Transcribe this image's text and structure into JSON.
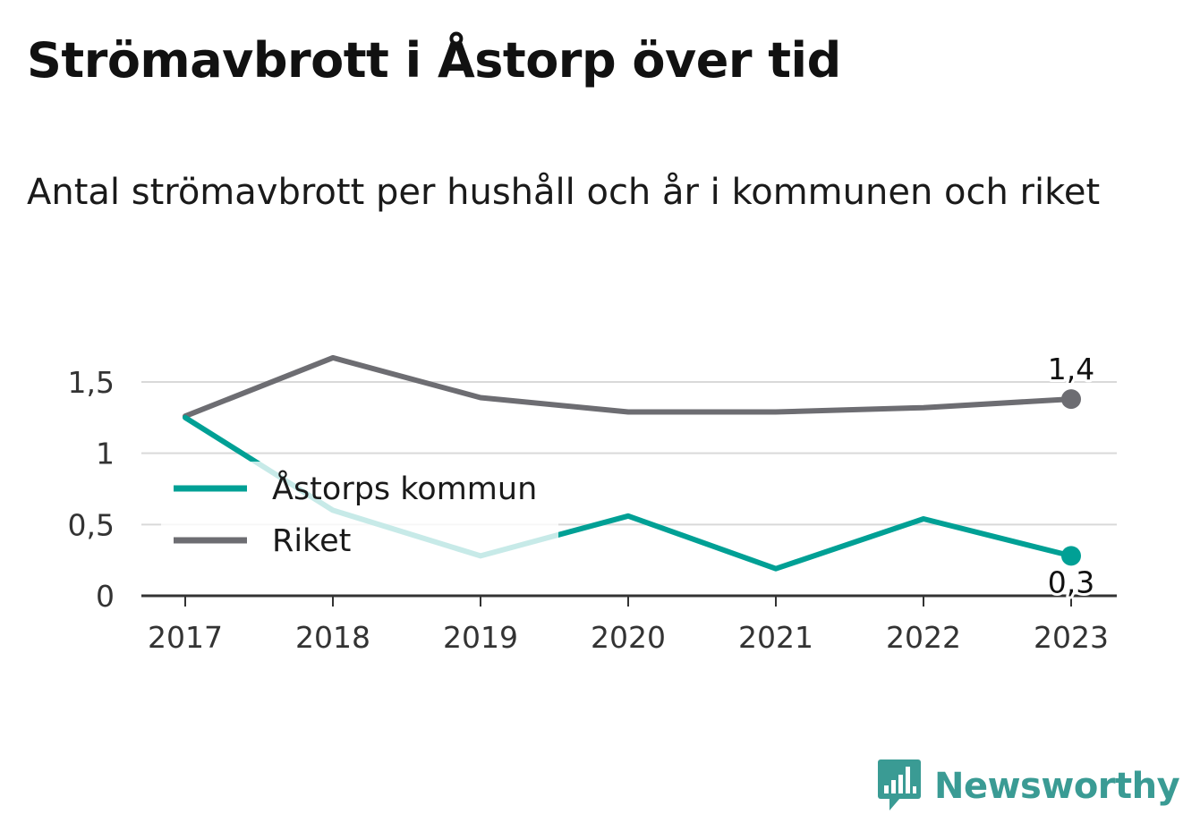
{
  "header": {
    "title": "Strömavbrott i Åstorp över tid",
    "subtitle": "Antal strömavbrott per hushåll och år i kommunen och riket"
  },
  "brand": {
    "name": "Newsworthy",
    "color": "#3a9b94",
    "icon": "bar-chart-speech-bubble-icon"
  },
  "chart_data": {
    "type": "line",
    "title": "Strömavbrott i Åstorp över tid",
    "subtitle": "Antal strömavbrott per hushåll och år i kommunen och riket",
    "xlabel": "",
    "ylabel": "",
    "x": [
      "2017",
      "2018",
      "2019",
      "2020",
      "2021",
      "2022",
      "2023"
    ],
    "ylim": [
      0,
      1.5
    ],
    "yticks": [
      0,
      0.5,
      1,
      1.5
    ],
    "ytick_labels": [
      "0",
      "0,5",
      "1",
      "1,5"
    ],
    "grid": true,
    "legend_position": "left",
    "series": [
      {
        "name": "Åstorps kommun",
        "color": "#00a095",
        "values": [
          1.25,
          0.6,
          0.28,
          0.56,
          0.19,
          0.54,
          0.28
        ],
        "end_label": "0,3",
        "end_label_position": "below"
      },
      {
        "name": "Riket",
        "color": "#6d6d72",
        "values": [
          1.26,
          1.67,
          1.39,
          1.29,
          1.29,
          1.32,
          1.38
        ],
        "end_label": "1,4",
        "end_label_position": "above"
      }
    ]
  }
}
